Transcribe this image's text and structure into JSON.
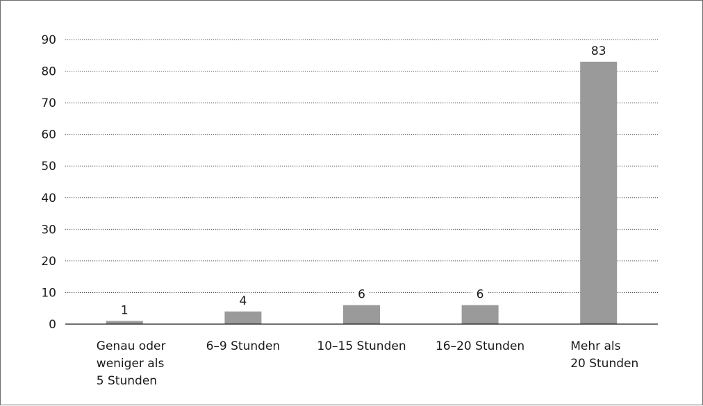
{
  "chart_data": {
    "type": "bar",
    "categories": [
      [
        "Genau oder",
        "weniger als",
        "5 Stunden"
      ],
      [
        "6–9 Stunden"
      ],
      [
        "10–15 Stunden"
      ],
      [
        "16–20 Stunden"
      ],
      [
        "Mehr als",
        "20 Stunden"
      ]
    ],
    "values": [
      1,
      4,
      6,
      6,
      83
    ],
    "data_labels": [
      "1",
      "4",
      "6",
      "6",
      "83"
    ],
    "ylim": [
      0,
      90
    ],
    "yticks": [
      0,
      10,
      20,
      30,
      40,
      50,
      60,
      70,
      80,
      90
    ],
    "grid": true,
    "bar_color": "#9a9a9a",
    "title": "",
    "xlabel": "",
    "ylabel": ""
  }
}
